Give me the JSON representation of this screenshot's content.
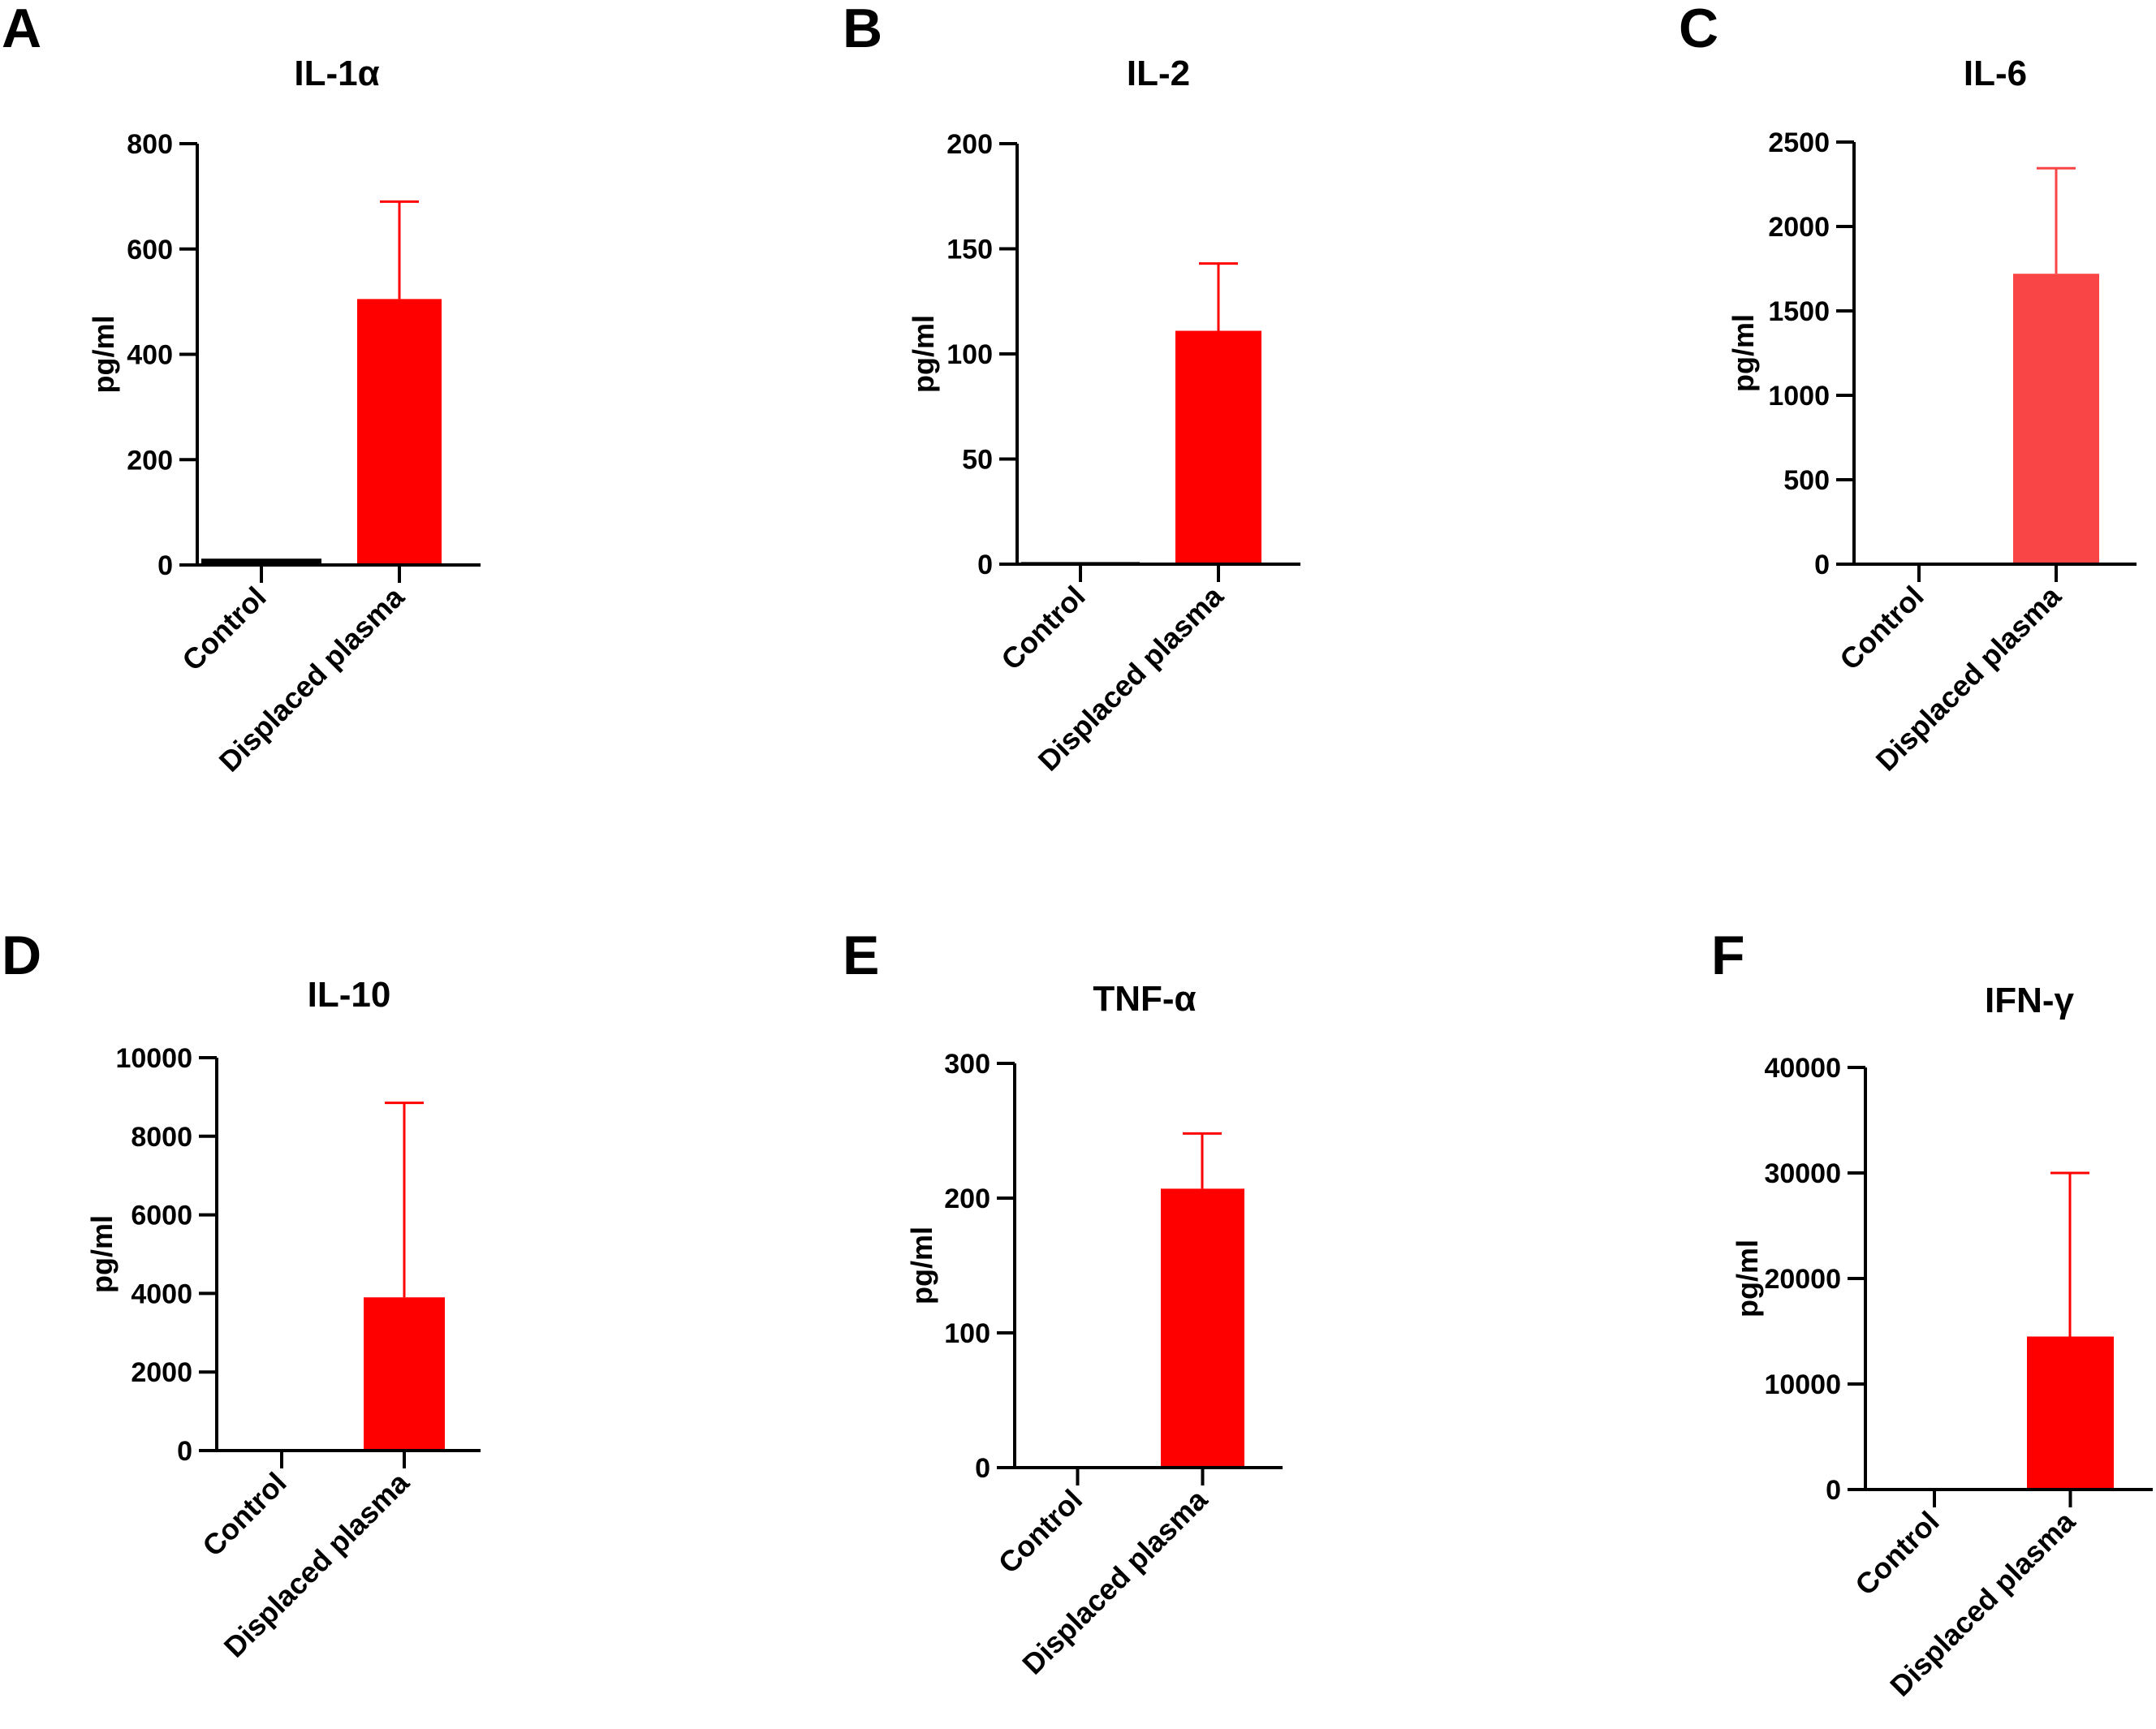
{
  "chart_data": [
    {
      "type": "bar",
      "panel": "A",
      "title": "IL-1α",
      "ylabel": "pg/ml",
      "xlabel": "",
      "categories": [
        "Control",
        "Displaced plasma"
      ],
      "values": [
        12,
        505
      ],
      "error_upper": [
        null,
        690
      ],
      "ylim": [
        0,
        800
      ],
      "yticks": [
        0,
        200,
        400,
        600,
        800
      ],
      "ytick_labels": [
        "0",
        "200",
        "400",
        "600",
        "800"
      ],
      "colors": [
        "#000000",
        "#ff0000"
      ]
    },
    {
      "type": "bar",
      "panel": "B",
      "title": "IL-2",
      "ylabel": "pg/ml",
      "xlabel": "",
      "categories": [
        "Control",
        "Displaced plasma"
      ],
      "values": [
        1,
        111
      ],
      "error_upper": [
        null,
        143
      ],
      "ylim": [
        0,
        200
      ],
      "yticks": [
        0,
        50,
        100,
        150,
        200
      ],
      "ytick_labels": [
        "0",
        "50",
        "100",
        "150",
        "200"
      ],
      "colors": [
        "#000000",
        "#ff0000"
      ]
    },
    {
      "type": "bar",
      "panel": "C",
      "title": "IL-6",
      "ylabel": "pg/ml",
      "xlabel": "",
      "categories": [
        "Control",
        "Displaced plasma"
      ],
      "values": [
        0,
        1720
      ],
      "error_upper": [
        null,
        2345
      ],
      "ylim": [
        0,
        2500
      ],
      "yticks": [
        0,
        500,
        1000,
        1500,
        2000,
        2500
      ],
      "ytick_labels": [
        "0",
        "500",
        "1000",
        "1500",
        "2000",
        "2500"
      ],
      "colors": [
        "#000000",
        "#f94545"
      ]
    },
    {
      "type": "bar",
      "panel": "D",
      "title": "IL-10",
      "ylabel": "pg/ml",
      "xlabel": "",
      "categories": [
        "Control",
        "Displaced plasma"
      ],
      "values": [
        0,
        3900
      ],
      "error_upper": [
        null,
        8850
      ],
      "ylim": [
        0,
        10000
      ],
      "yticks": [
        0,
        2000,
        4000,
        6000,
        8000,
        10000
      ],
      "ytick_labels": [
        "0",
        "2000",
        "4000",
        "6000",
        "8000",
        "10000"
      ],
      "colors": [
        "#000000",
        "#ff0000"
      ]
    },
    {
      "type": "bar",
      "panel": "E",
      "title": "TNF-α",
      "ylabel": "pg/ml",
      "xlabel": "",
      "categories": [
        "Control",
        "Displaced plasma"
      ],
      "values": [
        0,
        207
      ],
      "error_upper": [
        null,
        248
      ],
      "ylim": [
        0,
        300
      ],
      "yticks": [
        0,
        100,
        200,
        300
      ],
      "ytick_labels": [
        "0",
        "100",
        "200",
        "300"
      ],
      "colors": [
        "#000000",
        "#ff0000"
      ]
    },
    {
      "type": "bar",
      "panel": "F",
      "title": "IFN-γ",
      "ylabel": "pg/ml",
      "xlabel": "",
      "categories": [
        "Control",
        "Displaced plasma"
      ],
      "values": [
        0,
        14500
      ],
      "error_upper": [
        null,
        30000
      ],
      "ylim": [
        0,
        40000
      ],
      "yticks": [
        0,
        10000,
        20000,
        30000,
        40000
      ],
      "ytick_labels": [
        "0",
        "10000",
        "20000",
        "30000",
        "40000"
      ],
      "colors": [
        "#000000",
        "#ff0000"
      ]
    }
  ]
}
